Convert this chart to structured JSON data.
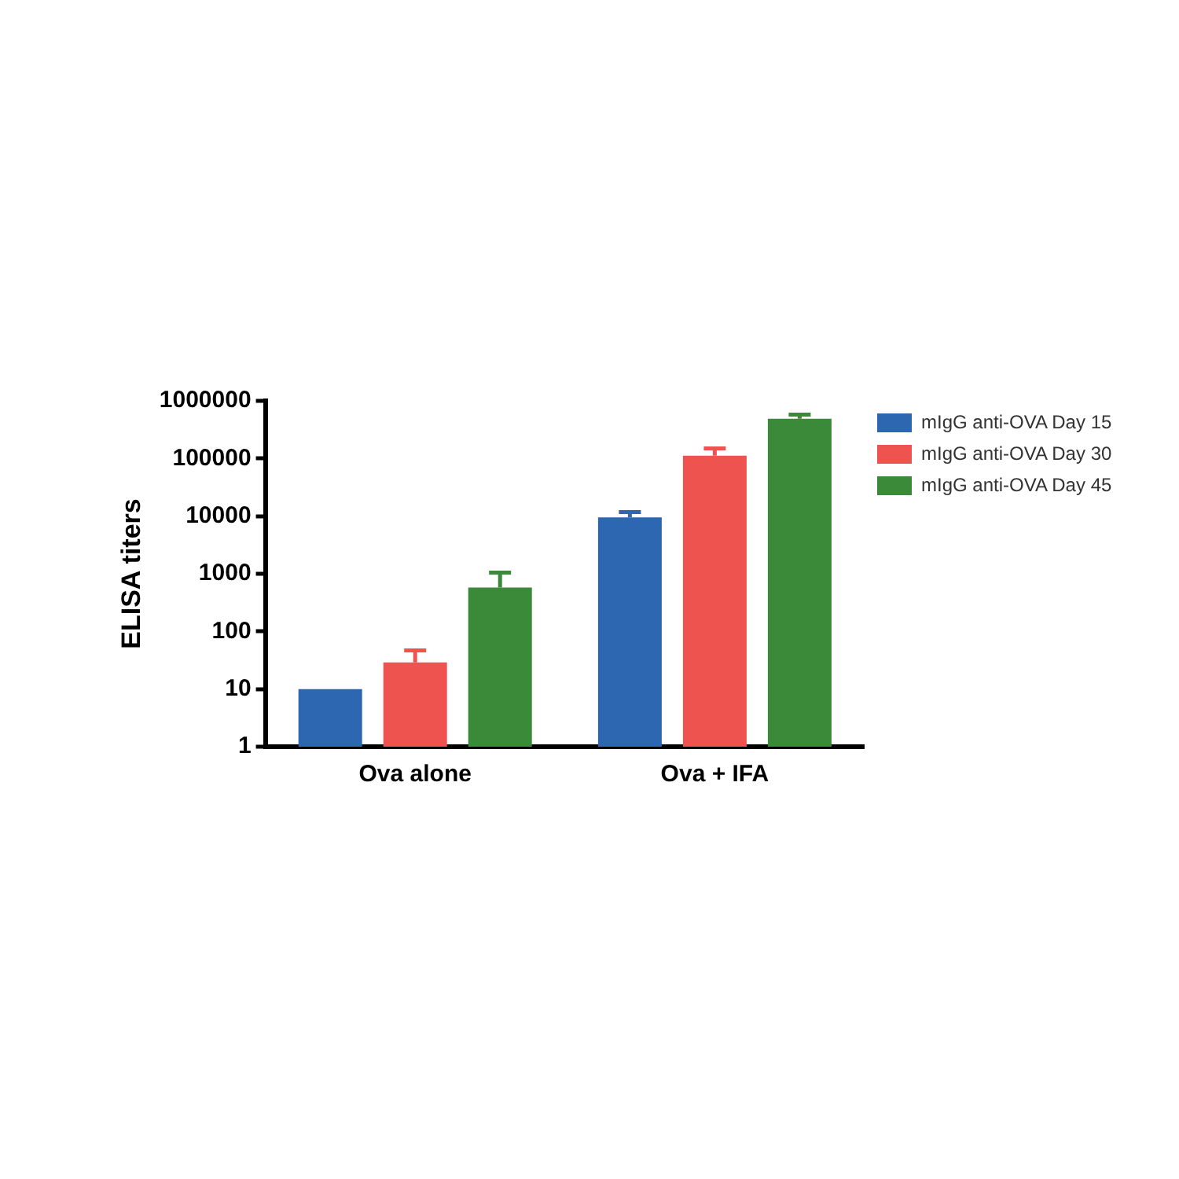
{
  "chart_data": {
    "type": "bar",
    "ylabel": "ELISA titers",
    "categories": [
      "Ova alone",
      "Ova + IFA"
    ],
    "series": [
      {
        "name": "mIgG anti-OVA Day 15",
        "color": "#2e67b1",
        "values": [
          10,
          9500
        ],
        "errors": [
          null,
          [
            9500,
            11800
          ]
        ]
      },
      {
        "name": "mIgG anti-OVA Day 30",
        "color": "#ef5350",
        "values": [
          29,
          112000
        ],
        "errors": [
          [
            29,
            47
          ],
          [
            112000,
            150000
          ]
        ]
      },
      {
        "name": "mIgG anti-OVA Day 45",
        "color": "#3a8a3a",
        "values": [
          575,
          490000
        ],
        "errors": [
          [
            575,
            1050
          ],
          [
            490000,
            575000
          ]
        ]
      }
    ],
    "log": "y",
    "ylim": [
      1,
      1000000
    ],
    "yticks": [
      1,
      10,
      100,
      1000,
      10000,
      100000,
      1000000
    ],
    "grid": false,
    "legend": "top right"
  }
}
